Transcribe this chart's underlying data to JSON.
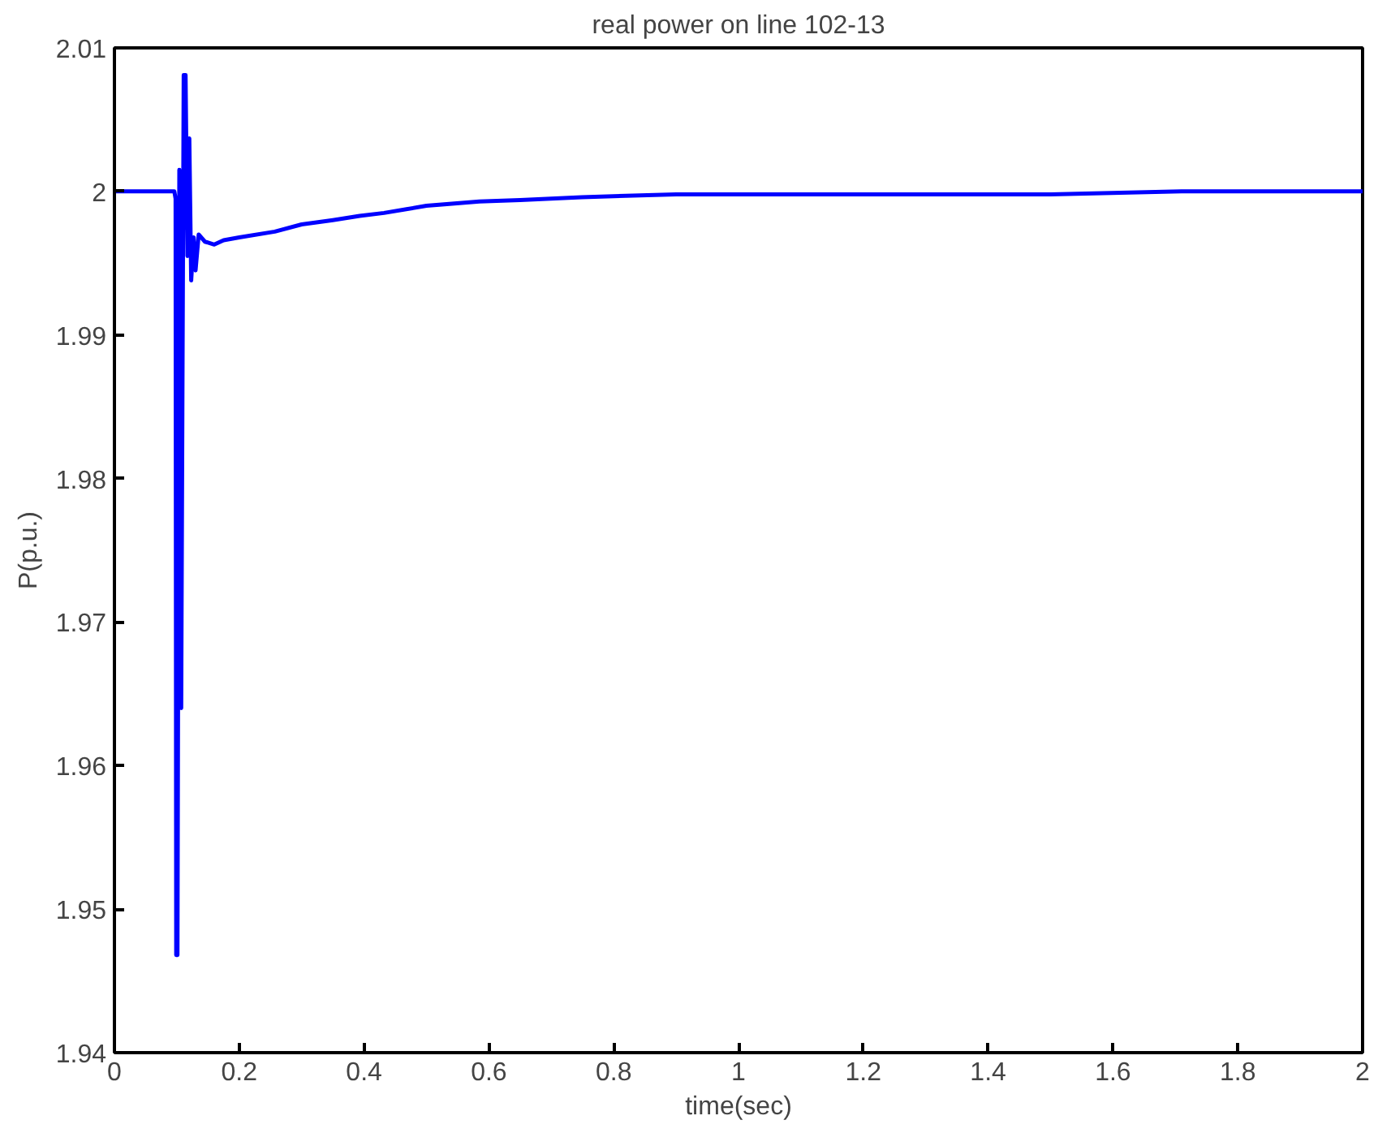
{
  "chart_data": {
    "type": "line",
    "title": "real power on line 102-13",
    "xlabel": "time(sec)",
    "ylabel": "P(p.u.)",
    "series": [
      {
        "color": "#0000ff",
        "x": [
          0,
          0.096,
          0.098,
          0.099,
          0.101,
          0.104,
          0.107,
          0.111,
          0.114,
          0.117,
          0.12,
          0.123,
          0.127,
          0.13,
          0.135,
          0.145,
          0.16,
          0.175,
          0.2,
          0.257,
          0.3,
          0.35,
          0.393,
          0.432,
          0.5,
          0.585,
          0.65,
          0.749,
          0.9,
          1.2,
          1.5,
          1.71,
          2
        ],
        "values": [
          2.0,
          2.0,
          1.9995,
          1.9468,
          1.9468,
          2.0015,
          1.964,
          2.0081,
          2.0081,
          1.9955,
          2.0037,
          1.9938,
          1.9968,
          1.9945,
          1.997,
          1.9965,
          1.9963,
          1.9966,
          1.9968,
          1.9972,
          1.9977,
          1.998,
          1.9983,
          1.9985,
          1.999,
          1.9993,
          1.9994,
          1.9996,
          1.9998,
          1.9998,
          1.9998,
          2.0,
          2.0
        ]
      }
    ],
    "xlim": [
      0,
      2
    ],
    "ylim": [
      1.94,
      2.01
    ],
    "xticks": [
      0,
      0.2,
      0.4,
      0.6,
      0.8,
      1,
      1.2,
      1.4,
      1.6,
      1.8,
      2
    ],
    "yticks": [
      1.94,
      1.95,
      1.96,
      1.97,
      1.98,
      1.99,
      2,
      2.01
    ],
    "grid": false,
    "marker": "none",
    "line_style": "solid"
  }
}
